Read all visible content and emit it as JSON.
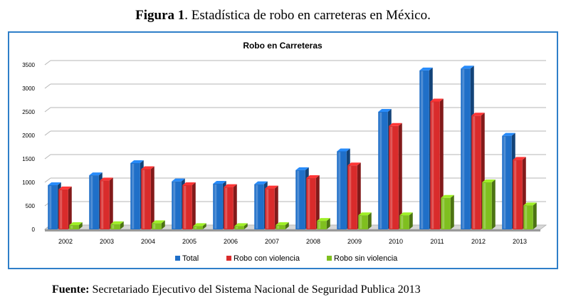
{
  "caption": {
    "label": "Figura 1",
    "text": ". Estadística de robo en carreteras en México."
  },
  "source": {
    "label": "Fuente:",
    "text": " Secretariado Ejecutivo del Sistema Nacional de Seguridad Publica  2013"
  },
  "chart_data": {
    "type": "bar",
    "title": "Robo en Carreteras",
    "xlabel": "",
    "ylabel": "",
    "ylim": [
      0,
      3500
    ],
    "yticks": [
      0,
      500,
      1000,
      1500,
      2000,
      2500,
      3000,
      3500
    ],
    "grid": true,
    "legend_position": "bottom",
    "categories": [
      "2002",
      "2003",
      "2004",
      "2005",
      "2006",
      "2007",
      "2008",
      "2009",
      "2010",
      "2011",
      "2012",
      "2013"
    ],
    "series": [
      {
        "name": "Total",
        "color": "#1f6fc8",
        "values": [
          940,
          1150,
          1410,
          1020,
          970,
          960,
          1260,
          1660,
          2500,
          3380,
          3420,
          1990
        ]
      },
      {
        "name": "Robo con violencia",
        "color": "#d92b2b",
        "values": [
          850,
          1040,
          1280,
          940,
          900,
          870,
          1090,
          1360,
          2200,
          2720,
          2420,
          1480
        ]
      },
      {
        "name": "Robo sin violencia",
        "color": "#7fbf1f",
        "values": [
          90,
          110,
          130,
          70,
          70,
          90,
          180,
          300,
          300,
          670,
          1000,
          510
        ]
      }
    ]
  }
}
